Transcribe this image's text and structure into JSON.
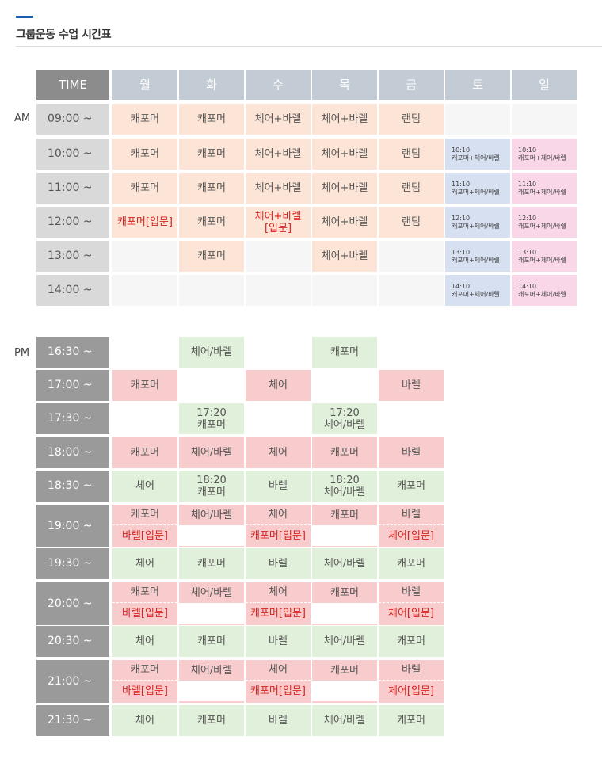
{
  "title": "그룹운동 수업 시간표",
  "accent_color": "#1a5fb4",
  "headers": {
    "time": "TIME",
    "days": [
      "월",
      "화",
      "수",
      "목",
      "금",
      "토",
      "일"
    ]
  },
  "am": {
    "label": "AM",
    "rows": [
      {
        "time": "09:00 ~",
        "cells": [
          {
            "t": "캐포머",
            "c": "peach"
          },
          {
            "t": "캐포머",
            "c": "peach"
          },
          {
            "t": "체어+바렐",
            "c": "peach"
          },
          {
            "t": "체어+바렐",
            "c": "peach"
          },
          {
            "t": "랜덤",
            "c": "peach"
          },
          {
            "t": "",
            "c": "empty"
          },
          {
            "t": "",
            "c": "empty"
          }
        ]
      },
      {
        "time": "10:00 ~",
        "cells": [
          {
            "t": "캐포머",
            "c": "peach"
          },
          {
            "t": "캐포머",
            "c": "peach"
          },
          {
            "t": "체어+바렐",
            "c": "peach"
          },
          {
            "t": "체어+바렐",
            "c": "peach"
          },
          {
            "t": "랜덤",
            "c": "peach"
          },
          {
            "t": "10:10",
            "t2": "캐포머+체어/바렐",
            "c": "blue"
          },
          {
            "t": "10:10",
            "t2": "캐포머+체어/바렐",
            "c": "pink"
          }
        ]
      },
      {
        "time": "11:00 ~",
        "cells": [
          {
            "t": "캐포머",
            "c": "peach"
          },
          {
            "t": "캐포머",
            "c": "peach"
          },
          {
            "t": "체어+바렐",
            "c": "peach"
          },
          {
            "t": "체어+바렐",
            "c": "peach"
          },
          {
            "t": "랜덤",
            "c": "peach"
          },
          {
            "t": "11:10",
            "t2": "캐포머+체어/바렐",
            "c": "blue"
          },
          {
            "t": "11:10",
            "t2": "캐포머+체어/바렐",
            "c": "pink"
          }
        ]
      },
      {
        "time": "12:00 ~",
        "cells": [
          {
            "t": "캐포머[입문]",
            "c": "peach intro"
          },
          {
            "t": "캐포머",
            "c": "peach"
          },
          {
            "t": "체어+바렐",
            "t2": "[입문]",
            "c": "peach intro"
          },
          {
            "t": "체어+바렐",
            "c": "peach"
          },
          {
            "t": "랜덤",
            "c": "peach"
          },
          {
            "t": "12:10",
            "t2": "캐포머+체어/바렐",
            "c": "blue"
          },
          {
            "t": "12:10",
            "t2": "캐포머+체어/바렐",
            "c": "pink"
          }
        ]
      },
      {
        "time": "13:00 ~",
        "cells": [
          {
            "t": "",
            "c": "empty"
          },
          {
            "t": "캐포머",
            "c": "peach"
          },
          {
            "t": "",
            "c": "empty"
          },
          {
            "t": "체어+바렐",
            "c": "peach"
          },
          {
            "t": "",
            "c": "empty"
          },
          {
            "t": "13:10",
            "t2": "캐포머+체어/바렐",
            "c": "blue"
          },
          {
            "t": "13:10",
            "t2": "캐포머+체어/바렐",
            "c": "pink"
          }
        ]
      },
      {
        "time": "14:00 ~",
        "cells": [
          {
            "t": "",
            "c": "empty"
          },
          {
            "t": "",
            "c": "empty"
          },
          {
            "t": "",
            "c": "empty"
          },
          {
            "t": "",
            "c": "empty"
          },
          {
            "t": "",
            "c": "empty"
          },
          {
            "t": "14:10",
            "t2": "캐포머+체어/바렐",
            "c": "blue"
          },
          {
            "t": "14:10",
            "t2": "캐포머+체어/바렐",
            "c": "pink"
          }
        ]
      }
    ]
  },
  "pm": {
    "label": "PM",
    "rows": [
      {
        "time": "16:30 ~",
        "cells": [
          {
            "t": "",
            "c": ""
          },
          {
            "t": "체어/바렐",
            "c": "green"
          },
          {
            "t": "",
            "c": ""
          },
          {
            "t": "캐포머",
            "c": "green"
          },
          {
            "t": "",
            "c": ""
          }
        ]
      },
      {
        "time": "17:00 ~",
        "cells": [
          {
            "t": "캐포머",
            "c": "red"
          },
          {
            "t": "",
            "c": ""
          },
          {
            "t": "체어",
            "c": "red"
          },
          {
            "t": "",
            "c": ""
          },
          {
            "t": "바렐",
            "c": "red"
          }
        ]
      },
      {
        "time": "17:30 ~",
        "cells": [
          {
            "t": "",
            "c": ""
          },
          {
            "t": "17:20",
            "t2": "캐포머",
            "c": "green"
          },
          {
            "t": "",
            "c": ""
          },
          {
            "t": "17:20",
            "t2": "체어/바렐",
            "c": "green"
          },
          {
            "t": "",
            "c": ""
          }
        ]
      },
      {
        "time": "18:00 ~",
        "cells": [
          {
            "t": "캐포머",
            "c": "red"
          },
          {
            "t": "체어/바렐",
            "c": "red"
          },
          {
            "t": "체어",
            "c": "red"
          },
          {
            "t": "캐포머",
            "c": "red"
          },
          {
            "t": "바렐",
            "c": "red"
          }
        ]
      },
      {
        "time": "18:30 ~",
        "cells": [
          {
            "t": "체어",
            "c": "green"
          },
          {
            "t": "18:20",
            "t2": "캐포머",
            "c": "green"
          },
          {
            "t": "바렐",
            "c": "green"
          },
          {
            "t": "18:20",
            "t2": "체어/바렐",
            "c": "green"
          },
          {
            "t": "캐포머",
            "c": "green"
          }
        ]
      },
      {
        "time": "19:00 ~",
        "tall": true,
        "cells": [
          {
            "t": "캐포머",
            "b": "바렐[입문]",
            "c": "red split"
          },
          {
            "t": "체어/바렐",
            "b": "",
            "c": "red split"
          },
          {
            "t": "체어",
            "b": "캐포머[입문]",
            "c": "red split"
          },
          {
            "t": "캐포머",
            "b": "",
            "c": "red split"
          },
          {
            "t": "바렐",
            "b": "체어[입문]",
            "c": "red split"
          }
        ]
      },
      {
        "time": "19:30 ~",
        "cells": [
          {
            "t": "체어",
            "c": "green"
          },
          {
            "t": "캐포머",
            "c": "green"
          },
          {
            "t": "바렐",
            "c": "green"
          },
          {
            "t": "체어/바렐",
            "c": "green"
          },
          {
            "t": "캐포머",
            "c": "green"
          }
        ]
      },
      {
        "time": "20:00 ~",
        "tall": true,
        "cells": [
          {
            "t": "캐포머",
            "b": "바렐[입문]",
            "c": "red split"
          },
          {
            "t": "체어/바렐",
            "b": "",
            "c": "red split"
          },
          {
            "t": "체어",
            "b": "캐포머[입문]",
            "c": "red split"
          },
          {
            "t": "캐포머",
            "b": "",
            "c": "red split"
          },
          {
            "t": "바렐",
            "b": "체어[입문]",
            "c": "red split"
          }
        ]
      },
      {
        "time": "20:30 ~",
        "cells": [
          {
            "t": "체어",
            "c": "green"
          },
          {
            "t": "캐포머",
            "c": "green"
          },
          {
            "t": "바렐",
            "c": "green"
          },
          {
            "t": "체어/바렐",
            "c": "green"
          },
          {
            "t": "캐포머",
            "c": "green"
          }
        ]
      },
      {
        "time": "21:00 ~",
        "tall": true,
        "cells": [
          {
            "t": "캐포머",
            "b": "바렐[입문]",
            "c": "red split"
          },
          {
            "t": "체어/바렐",
            "b": "",
            "c": "red split"
          },
          {
            "t": "체어",
            "b": "캐포머[입문]",
            "c": "red split"
          },
          {
            "t": "캐포머",
            "b": "",
            "c": "red split"
          },
          {
            "t": "바렐",
            "b": "체어[입문]",
            "c": "red split"
          }
        ]
      },
      {
        "time": "21:30 ~",
        "cells": [
          {
            "t": "체어",
            "c": "green"
          },
          {
            "t": "캐포머",
            "c": "green"
          },
          {
            "t": "바렐",
            "c": "green"
          },
          {
            "t": "체어/바렐",
            "c": "green"
          },
          {
            "t": "캐포머",
            "c": "green"
          }
        ]
      }
    ]
  }
}
